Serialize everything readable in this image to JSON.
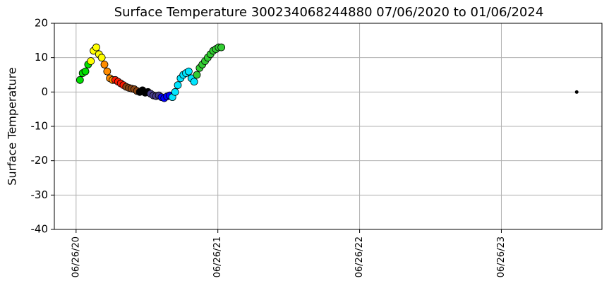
{
  "chart_data": {
    "type": "scatter",
    "title": "Surface Temperature 300234068244880  07/06/2020 to 01/06/2024",
    "y_label": "Surface Temperature",
    "xlim": [
      "2020-05-01",
      "2024-03-11"
    ],
    "xticks": [
      {
        "value": "2020-06-26",
        "label": "06/26/20"
      },
      {
        "value": "2021-06-26",
        "label": "06/26/21"
      },
      {
        "value": "2022-06-26",
        "label": "06/26/22"
      },
      {
        "value": "2023-06-26",
        "label": "06/26/23"
      }
    ],
    "ylim": [
      -40,
      20
    ],
    "yticks": [
      -40,
      -30,
      -20,
      -10,
      0,
      10,
      20
    ],
    "grid": true,
    "series": [
      {
        "color": "#00e000",
        "x": [
          "2020-07-06",
          "2020-07-13",
          "2020-07-20",
          "2020-07-27"
        ],
        "values": [
          3.5,
          5.5,
          6,
          8
        ]
      },
      {
        "color": "#ffff00",
        "x": [
          "2020-08-03",
          "2020-08-10",
          "2020-08-17",
          "2020-08-24",
          "2020-08-31"
        ],
        "values": [
          9,
          12,
          13,
          11,
          10
        ]
      },
      {
        "color": "#ff8c00",
        "x": [
          "2020-09-07",
          "2020-09-14",
          "2020-09-21",
          "2020-09-28"
        ],
        "values": [
          8,
          6,
          4,
          3.5
        ]
      },
      {
        "color": "#ff1a00",
        "x": [
          "2020-10-05",
          "2020-10-12",
          "2020-10-19",
          "2020-10-26"
        ],
        "values": [
          3.5,
          3,
          2.5,
          2
        ]
      },
      {
        "color": "#8b4513",
        "x": [
          "2020-11-02",
          "2020-11-09",
          "2020-11-16",
          "2020-11-23",
          "2020-11-30"
        ],
        "values": [
          1.5,
          1.2,
          1,
          0.8,
          0.3
        ]
      },
      {
        "color": "#000000",
        "x": [
          "2020-12-07",
          "2020-12-14",
          "2020-12-21",
          "2020-12-28"
        ],
        "values": [
          0,
          0.5,
          -0.2,
          0
        ]
      },
      {
        "color": "#483d8b",
        "x": [
          "2021-01-04",
          "2021-01-11",
          "2021-01-18",
          "2021-01-25"
        ],
        "values": [
          -0.5,
          -1,
          -1.2,
          -1
        ]
      },
      {
        "color": "#0000ff",
        "x": [
          "2021-02-01",
          "2021-02-08",
          "2021-02-15",
          "2021-02-22"
        ],
        "values": [
          -1.5,
          -1.8,
          -1.3,
          -1
        ]
      },
      {
        "color": "#00e5ff",
        "x": [
          "2021-03-01",
          "2021-03-08",
          "2021-03-15",
          "2021-03-22",
          "2021-03-29",
          "2021-04-05",
          "2021-04-12",
          "2021-04-19",
          "2021-04-26"
        ],
        "values": [
          -1.5,
          0,
          2,
          4,
          5,
          5.5,
          6,
          4,
          3
        ]
      },
      {
        "color": "#32cd32",
        "x": [
          "2021-05-03",
          "2021-05-10",
          "2021-05-17",
          "2021-05-24",
          "2021-05-31",
          "2021-06-07",
          "2021-06-14",
          "2021-06-21",
          "2021-06-28",
          "2021-07-05"
        ],
        "values": [
          5,
          7,
          8,
          9,
          10,
          11,
          12,
          12.5,
          13,
          13
        ]
      },
      {
        "color": "#000000",
        "x": [
          "2024-01-06"
        ],
        "values": [
          0
        ]
      }
    ]
  }
}
